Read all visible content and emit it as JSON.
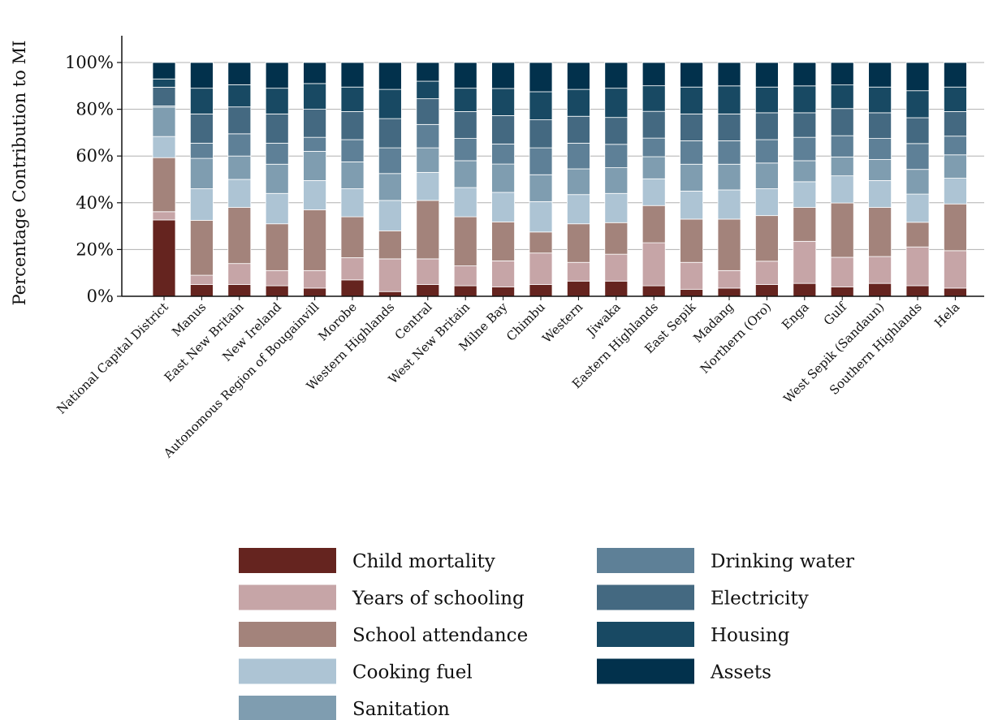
{
  "chart_data": {
    "type": "bar",
    "stacked": true,
    "normalized": true,
    "ylabel": "Percentage Contribution to MI",
    "ylim": [
      0,
      110
    ],
    "yticks": [
      "0%",
      "20%",
      "40%",
      "60%",
      "80%",
      "100%"
    ],
    "grid": "horizontal",
    "legend_position": "bottom-center",
    "categories": [
      "National Capital District",
      "Manus",
      "East New Britain",
      "New Ireland",
      "Autonomous Region of Bougainvill",
      "Morobe",
      "Western Highlands",
      "Central",
      "West New Britain",
      "Milne Bay",
      "Chimbu",
      "Western",
      "Jiwaka",
      "Eastern Highlands",
      "East Sepik",
      "Madang",
      "Northern (Oro)",
      "Enga",
      "Gulf",
      "West Sepik (Sandaun)",
      "Southern Highlands",
      "Hela"
    ],
    "series": [
      {
        "name": "Child mortality",
        "color": "#65241f",
        "values": [
          32.5,
          5,
          5,
          4.5,
          3.5,
          7,
          2,
          5,
          4.5,
          4,
          5,
          6.5,
          6.5,
          4.5,
          3,
          3.5,
          5,
          5.5,
          4,
          5.5,
          4.5,
          3.5
        ]
      },
      {
        "name": "Years of schooling",
        "color": "#c6a5a7",
        "values": [
          3.5,
          4,
          9,
          6.5,
          7.5,
          9.5,
          14,
          11,
          8.5,
          11,
          13.5,
          8,
          11.5,
          18.5,
          11.5,
          7.5,
          10,
          18,
          12.5,
          11.5,
          16.5,
          16
        ]
      },
      {
        "name": "School attendance",
        "color": "#a3837b",
        "values": [
          23,
          23.5,
          24,
          20,
          26,
          17.5,
          12,
          25,
          21,
          16.5,
          9,
          16.5,
          13.5,
          16,
          18.5,
          22,
          19.5,
          14.5,
          23,
          21,
          10.5,
          20
        ]
      },
      {
        "name": "Cooking fuel",
        "color": "#adc4d4",
        "values": [
          9,
          13.5,
          12,
          13,
          12.5,
          12,
          13,
          12,
          12.5,
          12.5,
          13,
          12.5,
          12.5,
          11.5,
          12,
          12.5,
          11.5,
          11,
          11.5,
          11.5,
          12,
          11
        ]
      },
      {
        "name": "Sanitation",
        "color": "#7f9db0",
        "values": [
          12.5,
          13,
          10,
          12.5,
          12.5,
          11.5,
          11.5,
          10.5,
          11.5,
          12,
          11.5,
          11,
          11,
          9.5,
          11.5,
          11,
          11,
          9,
          8,
          9,
          10.5,
          10
        ]
      },
      {
        "name": "Drinking water",
        "color": "#5e8097",
        "values": [
          0.5,
          6.5,
          9.5,
          9,
          6,
          9.5,
          11,
          10,
          9.5,
          8.5,
          11.5,
          11,
          10,
          8,
          10,
          10,
          10,
          10,
          9,
          9,
          11,
          8
        ]
      },
      {
        "name": "Electricity",
        "color": "#446981",
        "values": [
          8,
          12.5,
          11.5,
          12.5,
          12,
          12,
          12.5,
          11,
          11.5,
          12,
          12,
          11.5,
          11.5,
          11.5,
          11.5,
          11.5,
          11.5,
          10.5,
          11.5,
          11,
          11,
          10.5
        ]
      },
      {
        "name": "Housing",
        "color": "#184963",
        "values": [
          3.5,
          11,
          9.5,
          11,
          11,
          10.5,
          12.5,
          7.5,
          10,
          11.5,
          12,
          11.5,
          12.5,
          11,
          11.5,
          12,
          11,
          11.5,
          10,
          11,
          11.5,
          10.5
        ]
      },
      {
        "name": "Assets",
        "color": "#02314c",
        "values": [
          7,
          11,
          9.5,
          11,
          9,
          10.5,
          11.5,
          8,
          11,
          11,
          12.5,
          11.5,
          11,
          10,
          10.5,
          10,
          10.5,
          10,
          9.5,
          10.5,
          12,
          10.5
        ]
      }
    ]
  }
}
